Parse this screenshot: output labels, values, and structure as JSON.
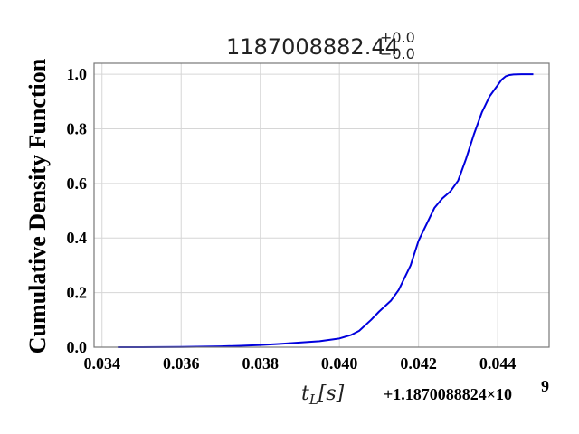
{
  "chart_data": {
    "type": "line",
    "title_base": "1187008882.44",
    "title_sup": "+0.0",
    "title_sub": "−0.0",
    "xlabel": "t",
    "xlabel_sub": "L",
    "xlabel_unit": "[s]",
    "x_offset_label": "+1.1870088824×10",
    "x_offset_exp": "9",
    "ylabel": "Cumulative Density Function",
    "xlim": [
      0.0338,
      0.0453
    ],
    "ylim": [
      0.0,
      1.04
    ],
    "x_ticks": [
      0.034,
      0.036,
      0.038,
      0.04,
      0.042,
      0.044
    ],
    "x_tick_labels": [
      "0.034",
      "0.036",
      "0.038",
      "0.040",
      "0.042",
      "0.044"
    ],
    "y_ticks": [
      0.0,
      0.2,
      0.4,
      0.6,
      0.8,
      1.0
    ],
    "y_tick_labels": [
      "0.0",
      "0.2",
      "0.4",
      "0.6",
      "0.8",
      "1.0"
    ],
    "grid": true,
    "series": [
      {
        "color": "#0000dd",
        "x": [
          0.0344,
          0.035,
          0.036,
          0.037,
          0.0375,
          0.038,
          0.0385,
          0.039,
          0.0395,
          0.04,
          0.0403,
          0.0405,
          0.0408,
          0.041,
          0.0413,
          0.0415,
          0.0418,
          0.042,
          0.0422,
          0.0424,
          0.0426,
          0.0428,
          0.043,
          0.0432,
          0.0434,
          0.0436,
          0.0438,
          0.044,
          0.0441,
          0.0442,
          0.0443,
          0.0444,
          0.0446,
          0.0449
        ],
        "y": [
          0.0,
          0.0,
          0.001,
          0.003,
          0.005,
          0.008,
          0.012,
          0.017,
          0.022,
          0.032,
          0.045,
          0.06,
          0.1,
          0.13,
          0.17,
          0.21,
          0.3,
          0.39,
          0.45,
          0.51,
          0.545,
          0.57,
          0.61,
          0.69,
          0.78,
          0.86,
          0.92,
          0.96,
          0.98,
          0.992,
          0.997,
          0.999,
          1.0,
          1.0
        ]
      }
    ]
  }
}
